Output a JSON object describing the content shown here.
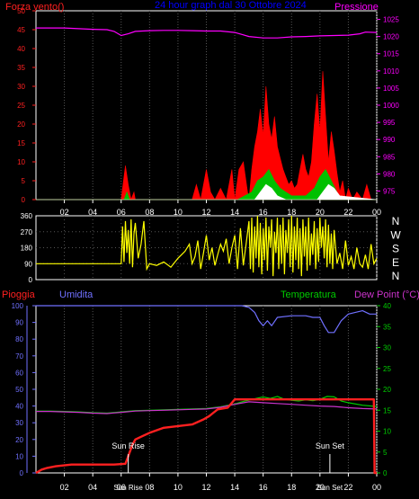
{
  "colors": {
    "background": "#000000",
    "frame": "#ffffff",
    "grid": "#555555",
    "wind_max": "#ff0000",
    "wind_avg": "#00c000",
    "wind_min": "#ffffff",
    "pressure": "#ff00ff",
    "direction": "#ffff00",
    "rain": "#ff2020",
    "humidity": "#7070ff",
    "temperature": "#00cc00",
    "dewpoint": "#cc33cc",
    "wind_axis_label": "#ff2020",
    "pressure_axis_label": "#ff00ff",
    "title": "#0000ff",
    "sun_label": "#ffffff"
  },
  "panel1": {
    "title": "24 hour graph dal  30 Ottobre 2024",
    "left_label": "Forza vento()",
    "right_label": "Pressione"
  },
  "panel2": {
    "compass_letters": [
      "N",
      "W",
      "S",
      "E",
      "N"
    ]
  },
  "panel3": {
    "rain_label": "Pioggia",
    "humidity_label": "Umidita",
    "temperature_label": "Temperatura",
    "dewpoint_label": "Dew Point (°C)",
    "sunrise_label": "Sun Rise",
    "sunset_label": "Sun Set"
  },
  "chart_data": [
    {
      "type": "area",
      "title": "24 hour graph dal  30 Ottobre 2024",
      "xlabel": "",
      "ylabel": "Forza vento()",
      "y2label": "Pressione",
      "x_ticks": [
        "02",
        "04",
        "06",
        "08",
        "10",
        "12",
        "14",
        "16",
        "18",
        "20",
        "22",
        "00"
      ],
      "xlim": [
        0,
        24
      ],
      "ylim": [
        0,
        50
      ],
      "y_ticks": [
        0,
        5,
        10,
        15,
        20,
        25,
        30,
        35,
        40,
        45,
        50
      ],
      "y2lim": [
        972.5,
        1027.5
      ],
      "y2_ticks": [
        975,
        980,
        985,
        990,
        995,
        1000,
        1005,
        1010,
        1015,
        1020,
        1025
      ],
      "series": [
        {
          "name": "Pressione",
          "axis": "right",
          "x": [
            0,
            1,
            2,
            3,
            4,
            5,
            5.5,
            6,
            6.5,
            7,
            8,
            9,
            10,
            11,
            12,
            13,
            14,
            14.5,
            15,
            16,
            17,
            18,
            19,
            20,
            21,
            22,
            22.8,
            23.2,
            24
          ],
          "values": [
            1022.5,
            1022.5,
            1022.5,
            1022.3,
            1022.1,
            1022,
            1021.5,
            1020.3,
            1020.8,
            1021.5,
            1021.7,
            1021.8,
            1021.8,
            1021.7,
            1021.6,
            1021.6,
            1021.2,
            1020.6,
            1020,
            1019.6,
            1019.6,
            1019.9,
            1020,
            1020.2,
            1020.3,
            1020.4,
            1020.8,
            1021.3,
            1021.2
          ]
        },
        {
          "name": "max",
          "x": [
            0,
            6,
            6.1,
            6.3,
            6.5,
            6.7,
            6.9,
            7,
            11,
            11.3,
            11.6,
            12,
            12.3,
            12.6,
            13,
            13.4,
            13.8,
            14,
            14.3,
            14.6,
            14.9,
            15,
            15.2,
            15.4,
            15.6,
            15.8,
            16,
            16.2,
            16.4,
            16.6,
            16.8,
            17,
            17.2,
            17.4,
            17.6,
            17.8,
            18,
            18.2,
            18.4,
            18.6,
            18.8,
            19,
            19.2,
            19.4,
            19.6,
            19.8,
            20,
            20.2,
            20.4,
            20.6,
            20.8,
            21,
            21.2,
            21.4,
            21.6,
            21.8,
            22,
            22.3,
            22.6,
            23,
            23.3,
            23.6,
            24
          ],
          "values": [
            0,
            0,
            3,
            9,
            4,
            0,
            2,
            0,
            0,
            4,
            0,
            8,
            2,
            0,
            3,
            0,
            8,
            0,
            8,
            10,
            2,
            0,
            8,
            14,
            18,
            24,
            17,
            30,
            20,
            16,
            22,
            14,
            11,
            8,
            6,
            4,
            5,
            3,
            4,
            8,
            12,
            8,
            6,
            10,
            20,
            28,
            18,
            34,
            22,
            10,
            18,
            13,
            7,
            2,
            5,
            0,
            3,
            0,
            2,
            0,
            4,
            0,
            0
          ]
        },
        {
          "name": "avg",
          "x": [
            0,
            6.2,
            6.4,
            6.6,
            14.2,
            15.2,
            15.6,
            16,
            16.4,
            16.8,
            17.2,
            17.6,
            18,
            19,
            19.6,
            20,
            20.4,
            20.8,
            21.2,
            21.5,
            24
          ],
          "values": [
            0,
            0,
            2,
            0,
            0,
            2,
            5,
            6,
            8,
            5,
            3,
            2,
            1,
            1,
            3,
            6,
            8,
            5,
            2,
            0,
            0
          ]
        },
        {
          "name": "min",
          "x": [
            0,
            15.4,
            15.8,
            16.2,
            16.6,
            17,
            17.6,
            19.8,
            20.2,
            20.6,
            21,
            21.4,
            24
          ],
          "values": [
            0,
            0,
            2,
            4,
            3,
            1,
            0,
            0,
            2,
            4,
            3,
            1,
            0
          ]
        }
      ]
    },
    {
      "type": "line",
      "xlabel": "",
      "ylabel": "",
      "x_ticks": [],
      "xlim": [
        0,
        24
      ],
      "ylim": [
        0,
        360
      ],
      "y_ticks": [
        0,
        90,
        180,
        270,
        360
      ],
      "series": [
        {
          "name": "direzione",
          "x": [
            0,
            6.0,
            6.1,
            6.2,
            6.3,
            6.4,
            6.5,
            6.6,
            6.7,
            6.8,
            6.9,
            7.0,
            7.2,
            7.4,
            7.6,
            7.8,
            8.0,
            8.5,
            9.0,
            9.5,
            10.0,
            10.5,
            10.8,
            11.0,
            11.2,
            11.4,
            11.6,
            11.8,
            12.0,
            12.2,
            12.4,
            12.6,
            12.8,
            13.0,
            13.2,
            13.4,
            13.6,
            13.8,
            14.0,
            14.2,
            14.4,
            14.6,
            14.8,
            15.0,
            15.1,
            15.2,
            15.3,
            15.4,
            15.5,
            15.6,
            15.7,
            15.8,
            15.9,
            16.0,
            16.1,
            16.2,
            16.3,
            16.4,
            16.5,
            16.6,
            16.7,
            16.8,
            16.9,
            17.0,
            17.1,
            17.2,
            17.3,
            17.4,
            17.5,
            17.6,
            17.7,
            17.8,
            17.9,
            18.0,
            18.1,
            18.2,
            18.3,
            18.4,
            18.5,
            18.6,
            18.7,
            18.8,
            18.9,
            19.0,
            19.1,
            19.2,
            19.3,
            19.4,
            19.5,
            19.6,
            19.7,
            19.8,
            19.9,
            20.0,
            20.1,
            20.2,
            20.3,
            20.4,
            20.5,
            20.6,
            20.7,
            20.8,
            20.9,
            21.0,
            21.2,
            21.4,
            21.6,
            21.8,
            22.0,
            22.2,
            22.4,
            22.6,
            22.8,
            23.0,
            23.2,
            23.4,
            23.6,
            23.8,
            24.0
          ],
          "values": [
            90,
            90,
            300,
            100,
            330,
            150,
            280,
            90,
            340,
            70,
            260,
            320,
            120,
            200,
            330,
            60,
            90,
            80,
            100,
            70,
            120,
            160,
            200,
            90,
            130,
            220,
            60,
            150,
            250,
            110,
            180,
            80,
            140,
            200,
            160,
            230,
            90,
            180,
            250,
            60,
            290,
            80,
            200,
            330,
            60,
            350,
            40,
            300,
            120,
            360,
            70,
            320,
            30,
            290,
            110,
            350,
            50,
            300,
            180,
            340,
            20,
            270,
            150,
            350,
            60,
            310,
            90,
            350,
            30,
            280,
            150,
            340,
            70,
            360,
            40,
            300,
            110,
            350,
            60,
            290,
            20,
            340,
            130,
            300,
            50,
            350,
            80,
            260,
            140,
            330,
            60,
            290,
            100,
            350,
            180,
            300,
            120,
            340,
            70,
            310,
            90,
            260,
            60,
            280,
            90,
            150,
            60,
            220,
            80,
            130,
            60,
            180,
            90,
            70,
            140,
            60,
            200,
            90,
            120
          ]
        }
      ]
    },
    {
      "type": "line",
      "xlabel": "",
      "ylabel": "Pioggia",
      "y2label": "Dew Point (°C)",
      "x_ticks": [
        "02",
        "04",
        "06",
        "08",
        "10",
        "12",
        "14",
        "16",
        "18",
        "20",
        "22",
        "00"
      ],
      "xlim": [
        0,
        24
      ],
      "ylim": [
        0,
        100
      ],
      "y_ticks": [
        0,
        10,
        20,
        30,
        40,
        50,
        60,
        70,
        80,
        90,
        100
      ],
      "y2lim": [
        0,
        40
      ],
      "y2_ticks": [
        0,
        5,
        10,
        15,
        20,
        25,
        30,
        35,
        40
      ],
      "annotations": [
        {
          "text": "Sun Rise",
          "x": 6.5
        },
        {
          "text": "Sun Set",
          "x": 20.7
        }
      ],
      "series": [
        {
          "name": "Umidita",
          "axis": "left",
          "x": [
            0,
            14.5,
            15,
            15.4,
            15.7,
            16,
            16.3,
            16.6,
            17,
            18,
            19,
            19.5,
            20,
            20.3,
            20.6,
            21,
            21.5,
            22,
            23,
            23.5,
            24
          ],
          "values": [
            100,
            100,
            99,
            96,
            91,
            88,
            91,
            88,
            93,
            94,
            94,
            93,
            93,
            88,
            84,
            84,
            91,
            95,
            97,
            95,
            95
          ]
        },
        {
          "name": "Pioggia",
          "axis": "left",
          "x": [
            0,
            0.4,
            0.8,
            1.4,
            2.5,
            4.0,
            5.5,
            6.3,
            6.5,
            6.8,
            7.0,
            7.5,
            8.0,
            9.0,
            10.0,
            11.0,
            11.8,
            12.2,
            12.5,
            12.8,
            13.5,
            14,
            15,
            18,
            21,
            23.8,
            23.85,
            24
          ],
          "values": [
            0,
            2,
            3,
            4,
            5,
            5,
            5,
            5.5,
            10,
            17,
            20,
            22,
            24,
            27,
            28,
            29,
            32,
            34,
            36,
            38,
            39,
            44,
            44,
            44,
            44,
            44,
            0,
            0
          ]
        },
        {
          "name": "Temperatura",
          "axis": "right",
          "x": [
            0,
            1,
            2,
            3,
            4,
            5,
            6,
            7,
            8,
            9,
            10,
            11,
            12,
            13,
            14,
            14.5,
            15,
            15.5,
            16,
            16.5,
            17,
            17.5,
            18,
            18.5,
            19,
            19.5,
            20,
            20.5,
            21,
            21.5,
            22,
            23,
            24
          ],
          "values": [
            14.8,
            14.8,
            14.7,
            14.6,
            14.4,
            14.3,
            14.6,
            14.9,
            15.0,
            15.1,
            15.2,
            15.3,
            15.4,
            15.8,
            16.5,
            17,
            17.4,
            17.8,
            18.2,
            17.8,
            18.3,
            17.6,
            17.4,
            17.2,
            17.5,
            17.3,
            17.6,
            18.3,
            18.2,
            17.2,
            16.8,
            16.2,
            15.9
          ]
        },
        {
          "name": "Dew Point",
          "axis": "right",
          "x": [
            0,
            1,
            2,
            3,
            4,
            5,
            6,
            7,
            8,
            9,
            10,
            11,
            12,
            13,
            14,
            15,
            16,
            17,
            18,
            19,
            20,
            21,
            22,
            23,
            24
          ],
          "values": [
            14.7,
            14.7,
            14.6,
            14.5,
            14.3,
            14.2,
            14.5,
            14.8,
            14.9,
            15.0,
            15.1,
            15.2,
            15.3,
            15.7,
            16.4,
            17.0,
            16.8,
            16.6,
            16.4,
            16.2,
            16.0,
            15.9,
            15.6,
            15.4,
            15.3
          ]
        }
      ]
    }
  ]
}
